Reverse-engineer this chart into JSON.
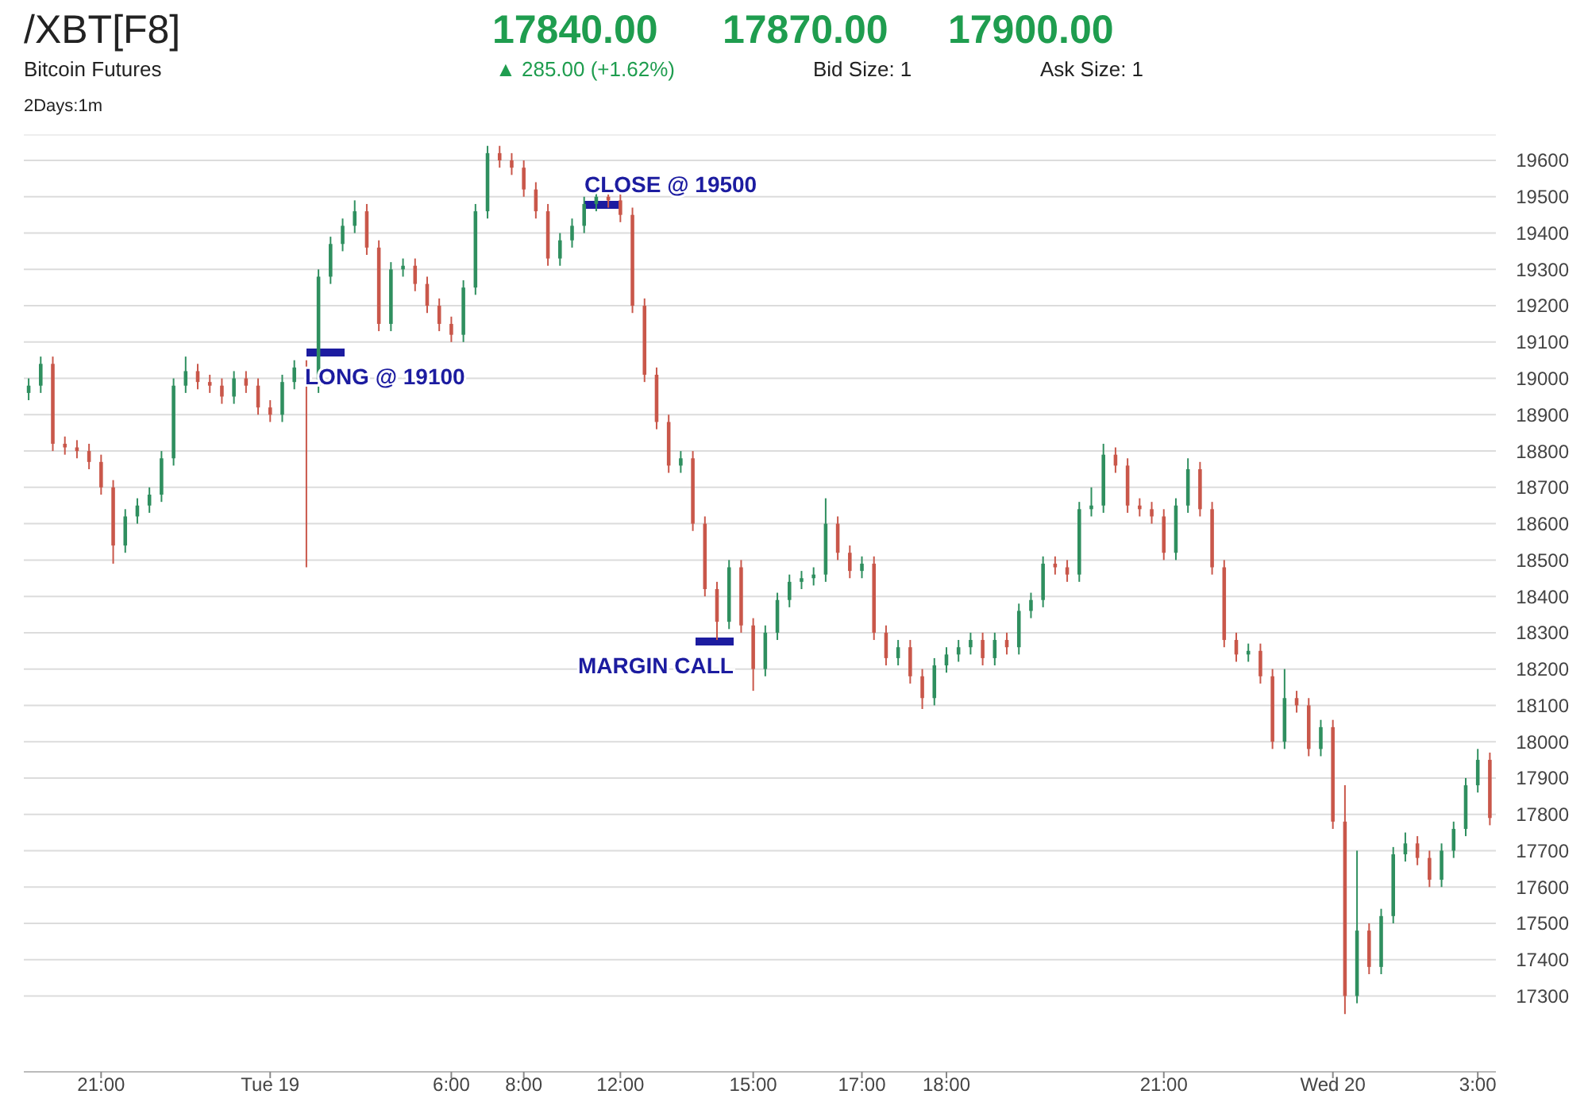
{
  "chart_data": {
    "type": "candlestick",
    "title": "/XBT[F8]",
    "subtitle": "Bitcoin Futures",
    "categories": [
      null,
      null,
      null,
      null,
      null,
      null,
      "21:00",
      null,
      null,
      null,
      null,
      null,
      null,
      null,
      null,
      null,
      null,
      null,
      null,
      null,
      "Tue 19",
      null,
      null,
      null,
      null,
      null,
      null,
      null,
      null,
      null,
      null,
      null,
      null,
      null,
      null,
      "6:00",
      null,
      null,
      null,
      null,
      null,
      "8:00",
      null,
      null,
      null,
      null,
      null,
      null,
      null,
      "12:00",
      null,
      null,
      null,
      null,
      null,
      null,
      null,
      null,
      null,
      null,
      "15:00",
      null,
      null,
      null,
      null,
      null,
      null,
      null,
      null,
      "17:00",
      null,
      null,
      null,
      null,
      null,
      null,
      "18:00",
      null,
      null,
      null,
      null,
      null,
      null,
      null,
      null,
      null,
      null,
      null,
      null,
      null,
      null,
      null,
      null,
      null,
      "21:00",
      null,
      null,
      null,
      null,
      null,
      null,
      null,
      null,
      null,
      null,
      null,
      null,
      null,
      "Wed 20",
      null,
      null,
      null,
      null,
      null,
      null,
      null,
      null,
      null,
      null,
      null,
      "3:00",
      null
    ],
    "ylim": [
      17100,
      19670
    ],
    "yticks": [
      17300,
      17400,
      17500,
      17600,
      17700,
      17800,
      17900,
      18000,
      18100,
      18200,
      18300,
      18400,
      18500,
      18600,
      18700,
      18800,
      18900,
      19000,
      19100,
      19200,
      19300,
      19400,
      19500,
      19600
    ],
    "grid": "y",
    "series": [
      {
        "ohlc": [
          [
            18960,
            19000,
            18940,
            18980
          ],
          [
            18980,
            19060,
            18960,
            19040
          ],
          [
            19040,
            19060,
            18800,
            18820
          ],
          [
            18820,
            18840,
            18790,
            18810
          ],
          [
            18810,
            18830,
            18780,
            18800
          ],
          [
            18800,
            18820,
            18750,
            18770
          ],
          [
            18770,
            18790,
            18680,
            18700
          ],
          [
            18700,
            18720,
            18490,
            18540
          ],
          [
            18540,
            18640,
            18520,
            18620
          ],
          [
            18620,
            18670,
            18600,
            18650
          ],
          [
            18650,
            18700,
            18630,
            18680
          ],
          [
            18680,
            18800,
            18660,
            18780
          ],
          [
            18780,
            19000,
            18760,
            18980
          ],
          [
            18980,
            19060,
            18960,
            19020
          ],
          [
            19020,
            19040,
            18970,
            18990
          ],
          [
            18990,
            19010,
            18960,
            18980
          ],
          [
            18980,
            19000,
            18930,
            18950
          ],
          [
            18950,
            19020,
            18930,
            19000
          ],
          [
            19000,
            19020,
            18960,
            18980
          ],
          [
            18980,
            19000,
            18900,
            18920
          ],
          [
            18920,
            18940,
            18880,
            18900
          ],
          [
            18900,
            19010,
            18880,
            18990
          ],
          [
            18990,
            19050,
            18970,
            19030
          ],
          [
            19030,
            19050,
            18480,
            18980
          ],
          [
            18980,
            19300,
            18960,
            19280
          ],
          [
            19280,
            19390,
            19260,
            19370
          ],
          [
            19370,
            19440,
            19350,
            19420
          ],
          [
            19420,
            19490,
            19400,
            19460
          ],
          [
            19460,
            19480,
            19340,
            19360
          ],
          [
            19360,
            19380,
            19130,
            19150
          ],
          [
            19150,
            19320,
            19130,
            19300
          ],
          [
            19300,
            19330,
            19280,
            19310
          ],
          [
            19310,
            19330,
            19240,
            19260
          ],
          [
            19260,
            19280,
            19180,
            19200
          ],
          [
            19200,
            19220,
            19130,
            19150
          ],
          [
            19150,
            19170,
            19100,
            19120
          ],
          [
            19120,
            19270,
            19100,
            19250
          ],
          [
            19250,
            19480,
            19230,
            19460
          ],
          [
            19460,
            19640,
            19440,
            19620
          ],
          [
            19620,
            19640,
            19580,
            19600
          ],
          [
            19600,
            19620,
            19560,
            19580
          ],
          [
            19580,
            19600,
            19500,
            19520
          ],
          [
            19520,
            19540,
            19440,
            19460
          ],
          [
            19460,
            19480,
            19310,
            19330
          ],
          [
            19330,
            19400,
            19310,
            19380
          ],
          [
            19380,
            19440,
            19360,
            19420
          ],
          [
            19420,
            19500,
            19400,
            19480
          ],
          [
            19480,
            19520,
            19460,
            19500
          ],
          [
            19500,
            19520,
            19470,
            19490
          ],
          [
            19490,
            19510,
            19430,
            19450
          ],
          [
            19450,
            19470,
            19180,
            19200
          ],
          [
            19200,
            19220,
            18990,
            19010
          ],
          [
            19010,
            19030,
            18860,
            18880
          ],
          [
            18880,
            18900,
            18740,
            18760
          ],
          [
            18760,
            18800,
            18740,
            18780
          ],
          [
            18780,
            18800,
            18580,
            18600
          ],
          [
            18600,
            18620,
            18400,
            18420
          ],
          [
            18420,
            18440,
            18280,
            18330
          ],
          [
            18330,
            18500,
            18310,
            18480
          ],
          [
            18480,
            18500,
            18300,
            18320
          ],
          [
            18320,
            18340,
            18140,
            18200
          ],
          [
            18200,
            18320,
            18180,
            18300
          ],
          [
            18300,
            18410,
            18280,
            18390
          ],
          [
            18390,
            18460,
            18370,
            18440
          ],
          [
            18440,
            18470,
            18420,
            18450
          ],
          [
            18450,
            18480,
            18430,
            18460
          ],
          [
            18460,
            18670,
            18440,
            18600
          ],
          [
            18600,
            18620,
            18500,
            18520
          ],
          [
            18520,
            18540,
            18450,
            18470
          ],
          [
            18470,
            18510,
            18450,
            18490
          ],
          [
            18490,
            18510,
            18280,
            18300
          ],
          [
            18300,
            18320,
            18210,
            18230
          ],
          [
            18230,
            18280,
            18210,
            18260
          ],
          [
            18260,
            18280,
            18160,
            18180
          ],
          [
            18180,
            18200,
            18090,
            18120
          ],
          [
            18120,
            18230,
            18100,
            18210
          ],
          [
            18210,
            18260,
            18190,
            18240
          ],
          [
            18240,
            18280,
            18220,
            18260
          ],
          [
            18260,
            18300,
            18240,
            18280
          ],
          [
            18280,
            18300,
            18210,
            18230
          ],
          [
            18230,
            18300,
            18210,
            18280
          ],
          [
            18280,
            18300,
            18240,
            18260
          ],
          [
            18260,
            18380,
            18240,
            18360
          ],
          [
            18360,
            18410,
            18340,
            18390
          ],
          [
            18390,
            18510,
            18370,
            18490
          ],
          [
            18490,
            18510,
            18460,
            18480
          ],
          [
            18480,
            18500,
            18440,
            18460
          ],
          [
            18460,
            18660,
            18440,
            18640
          ],
          [
            18640,
            18700,
            18620,
            18650
          ],
          [
            18650,
            18820,
            18630,
            18790
          ],
          [
            18790,
            18810,
            18740,
            18760
          ],
          [
            18760,
            18780,
            18630,
            18650
          ],
          [
            18650,
            18670,
            18620,
            18640
          ],
          [
            18640,
            18660,
            18600,
            18620
          ],
          [
            18620,
            18640,
            18500,
            18520
          ],
          [
            18520,
            18670,
            18500,
            18650
          ],
          [
            18650,
            18780,
            18630,
            18750
          ],
          [
            18750,
            18770,
            18620,
            18640
          ],
          [
            18640,
            18660,
            18460,
            18480
          ],
          [
            18480,
            18500,
            18260,
            18280
          ],
          [
            18280,
            18300,
            18220,
            18240
          ],
          [
            18240,
            18270,
            18220,
            18250
          ],
          [
            18250,
            18270,
            18160,
            18180
          ],
          [
            18180,
            18200,
            17980,
            18000
          ],
          [
            18000,
            18200,
            17980,
            18120
          ],
          [
            18120,
            18140,
            18080,
            18100
          ],
          [
            18100,
            18120,
            17960,
            17980
          ],
          [
            17980,
            18060,
            17960,
            18040
          ],
          [
            18040,
            18060,
            17760,
            17780
          ],
          [
            17780,
            17880,
            17250,
            17300
          ],
          [
            17300,
            17700,
            17280,
            17480
          ],
          [
            17480,
            17500,
            17360,
            17380
          ],
          [
            17380,
            17540,
            17360,
            17520
          ],
          [
            17520,
            17710,
            17500,
            17690
          ],
          [
            17690,
            17750,
            17670,
            17720
          ],
          [
            17720,
            17740,
            17660,
            17680
          ],
          [
            17680,
            17700,
            17600,
            17620
          ],
          [
            17620,
            17720,
            17600,
            17700
          ],
          [
            17700,
            17780,
            17680,
            17760
          ],
          [
            17760,
            17900,
            17740,
            17880
          ],
          [
            17880,
            17980,
            17860,
            17950
          ],
          [
            17950,
            17970,
            17770,
            17790
          ]
        ],
        "colors": [
          "#2f8f5f",
          "#2f8f5f",
          "#c9574a",
          "#c9574a",
          "#c9574a",
          "#c9574a",
          "#c9574a",
          "#c9574a",
          "#2f8f5f",
          "#2f8f5f",
          "#2f8f5f",
          "#2f8f5f",
          "#2f8f5f",
          "#2f8f5f",
          "#c9574a",
          "#c9574a",
          "#c9574a",
          "#2f8f5f",
          "#c9574a",
          "#c9574a",
          "#c9574a",
          "#2f8f5f",
          "#2f8f5f",
          "#c9574a",
          "#2f8f5f",
          "#2f8f5f",
          "#2f8f5f",
          "#2f8f5f",
          "#c9574a",
          "#c9574a",
          "#2f8f5f",
          "#2f8f5f",
          "#c9574a",
          "#c9574a",
          "#c9574a",
          "#c9574a",
          "#2f8f5f",
          "#2f8f5f",
          "#2f8f5f",
          "#c9574a",
          "#c9574a",
          "#c9574a",
          "#c9574a",
          "#c9574a",
          "#2f8f5f",
          "#2f8f5f",
          "#2f8f5f",
          "#2f8f5f",
          "#c9574a",
          "#c9574a",
          "#c9574a",
          "#c9574a",
          "#c9574a",
          "#c9574a",
          "#2f8f5f",
          "#c9574a",
          "#c9574a",
          "#c9574a",
          "#2f8f5f",
          "#c9574a",
          "#c9574a",
          "#2f8f5f",
          "#2f8f5f",
          "#2f8f5f",
          "#2f8f5f",
          "#2f8f5f",
          "#2f8f5f",
          "#c9574a",
          "#c9574a",
          "#2f8f5f",
          "#c9574a",
          "#c9574a",
          "#2f8f5f",
          "#c9574a",
          "#c9574a",
          "#2f8f5f",
          "#2f8f5f",
          "#2f8f5f",
          "#2f8f5f",
          "#c9574a",
          "#2f8f5f",
          "#c9574a",
          "#2f8f5f",
          "#2f8f5f",
          "#2f8f5f",
          "#c9574a",
          "#c9574a",
          "#2f8f5f",
          "#2f8f5f",
          "#2f8f5f",
          "#c9574a",
          "#c9574a",
          "#c9574a",
          "#c9574a",
          "#c9574a",
          "#2f8f5f",
          "#2f8f5f",
          "#c9574a",
          "#c9574a",
          "#c9574a",
          "#c9574a",
          "#2f8f5f",
          "#c9574a",
          "#c9574a",
          "#2f8f5f",
          "#c9574a",
          "#c9574a",
          "#2f8f5f",
          "#c9574a",
          "#c9574a",
          "#2f8f5f",
          "#c9574a",
          "#2f8f5f",
          "#2f8f5f",
          "#2f8f5f",
          "#c9574a",
          "#c9574a",
          "#2f8f5f",
          "#2f8f5f",
          "#2f8f5f",
          "#2f8f5f",
          "#c9574a"
        ]
      }
    ],
    "annotations": [
      "17840.00",
      "17870.00",
      "17900.00",
      "▲ 285.00 (+1.62%)",
      "Bid Size: 1",
      "Ask Size: 1",
      "2Days:1m",
      "LONG @ 19100",
      "CLOSE @ 19500",
      "MARGIN CALL"
    ]
  }
}
